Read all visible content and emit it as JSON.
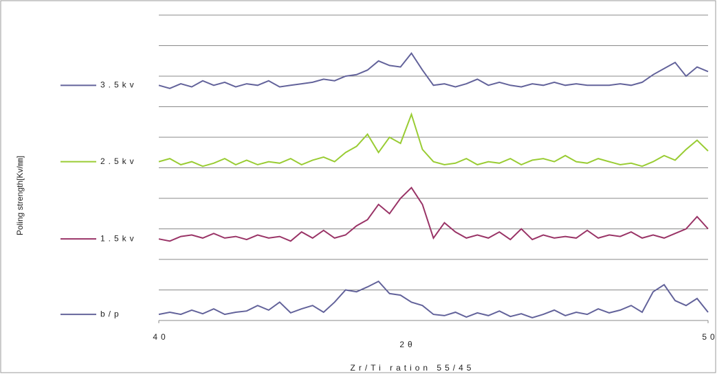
{
  "chart_data": {
    "type": "line",
    "x_label": "2θ",
    "y_label": "Poling strength[Kv/㎜]",
    "subtitle": "Zr/Ti ration 55/45",
    "x": [
      40.0,
      40.2,
      40.4,
      40.6,
      40.8,
      41.0,
      41.2,
      41.4,
      41.6,
      41.8,
      42.0,
      42.2,
      42.4,
      42.6,
      42.8,
      43.0,
      43.2,
      43.4,
      43.6,
      43.8,
      44.0,
      44.2,
      44.4,
      44.6,
      44.8,
      45.0,
      45.2,
      45.4,
      45.6,
      45.8,
      46.0,
      46.2,
      46.4,
      46.6,
      46.8,
      47.0,
      47.2,
      47.4,
      47.6,
      47.8,
      48.0,
      48.2,
      48.4,
      48.6,
      48.8,
      49.0,
      49.2,
      49.4,
      49.6,
      49.8,
      50.0
    ],
    "series": [
      {
        "name": "3.5kv",
        "color": "#62629a",
        "values": [
          7.7,
          7.6,
          7.75,
          7.65,
          7.85,
          7.7,
          7.8,
          7.65,
          7.75,
          7.7,
          7.85,
          7.65,
          7.7,
          7.75,
          7.8,
          7.9,
          7.85,
          8.0,
          8.05,
          8.2,
          8.5,
          8.35,
          8.3,
          8.75,
          8.2,
          7.7,
          7.75,
          7.65,
          7.75,
          7.9,
          7.7,
          7.8,
          7.7,
          7.65,
          7.75,
          7.7,
          7.8,
          7.7,
          7.75,
          7.7,
          7.7,
          7.7,
          7.75,
          7.7,
          7.8,
          8.05,
          8.25,
          8.45,
          8.0,
          8.3,
          8.15
        ]
      },
      {
        "name": "2.5kv",
        "color": "#99cc33",
        "values": [
          5.2,
          5.3,
          5.1,
          5.2,
          5.05,
          5.15,
          5.3,
          5.1,
          5.25,
          5.1,
          5.2,
          5.15,
          5.3,
          5.1,
          5.25,
          5.35,
          5.2,
          5.5,
          5.7,
          6.1,
          5.5,
          6.0,
          5.8,
          6.75,
          5.6,
          5.2,
          5.1,
          5.15,
          5.3,
          5.1,
          5.2,
          5.15,
          5.3,
          5.1,
          5.25,
          5.3,
          5.2,
          5.4,
          5.2,
          5.15,
          5.3,
          5.2,
          5.1,
          5.15,
          5.05,
          5.2,
          5.4,
          5.25,
          5.6,
          5.9,
          5.55
        ]
      },
      {
        "name": "1.5kv",
        "color": "#993366",
        "values": [
          2.67,
          2.6,
          2.75,
          2.8,
          2.7,
          2.85,
          2.7,
          2.75,
          2.65,
          2.8,
          2.7,
          2.75,
          2.6,
          2.9,
          2.7,
          2.95,
          2.7,
          2.8,
          3.1,
          3.3,
          3.8,
          3.5,
          4.0,
          4.35,
          3.8,
          2.7,
          3.2,
          2.9,
          2.7,
          2.8,
          2.7,
          2.9,
          2.65,
          3.0,
          2.65,
          2.8,
          2.7,
          2.75,
          2.7,
          2.95,
          2.7,
          2.8,
          2.75,
          2.9,
          2.7,
          2.8,
          2.7,
          2.85,
          3.0,
          3.4,
          3.0
        ]
      },
      {
        "name": "b/p",
        "color": "#62629a",
        "values": [
          0.2,
          0.27,
          0.2,
          0.34,
          0.22,
          0.38,
          0.2,
          0.27,
          0.31,
          0.49,
          0.34,
          0.6,
          0.25,
          0.38,
          0.49,
          0.27,
          0.6,
          1.0,
          0.94,
          1.1,
          1.28,
          0.88,
          0.83,
          0.6,
          0.49,
          0.2,
          0.16,
          0.27,
          0.11,
          0.25,
          0.16,
          0.31,
          0.13,
          0.22,
          0.09,
          0.2,
          0.34,
          0.16,
          0.27,
          0.2,
          0.38,
          0.25,
          0.34,
          0.49,
          0.27,
          0.94,
          1.17,
          0.65,
          0.49,
          0.72,
          0.27
        ]
      }
    ],
    "xlim": [
      40,
      50
    ],
    "xticks": [
      40,
      50
    ],
    "ylim": [
      0,
      10
    ],
    "yticks": [
      0,
      1,
      2,
      3,
      4,
      5,
      6,
      7,
      8,
      9,
      10
    ],
    "grid": true
  }
}
